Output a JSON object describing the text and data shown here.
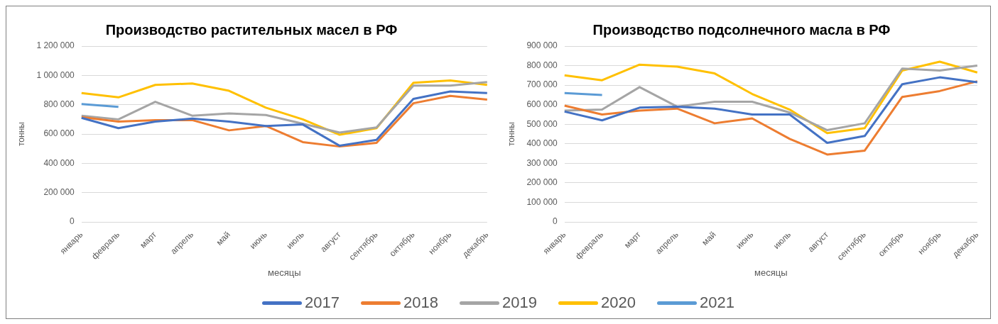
{
  "chart_data": [
    {
      "type": "line",
      "title": "Производство растительных масел в РФ",
      "xlabel": "месяцы",
      "ylabel": "тонны",
      "categories": [
        "январь",
        "февраль",
        "март",
        "апрель",
        "май",
        "июнь",
        "июль",
        "август",
        "сентябрь",
        "октябрь",
        "ноябрь",
        "декабрь"
      ],
      "series": [
        {
          "name": "2017",
          "color": "#4472c4",
          "values": [
            710000,
            640000,
            685000,
            705000,
            685000,
            655000,
            665000,
            520000,
            560000,
            840000,
            890000,
            880000
          ]
        },
        {
          "name": "2018",
          "color": "#ed7d31",
          "values": [
            715000,
            685000,
            695000,
            695000,
            625000,
            655000,
            545000,
            515000,
            540000,
            810000,
            860000,
            835000
          ]
        },
        {
          "name": "2019",
          "color": "#a5a5a5",
          "values": [
            725000,
            700000,
            820000,
            725000,
            740000,
            730000,
            670000,
            610000,
            645000,
            930000,
            930000,
            955000
          ]
        },
        {
          "name": "2020",
          "color": "#ffc000",
          "values": [
            880000,
            850000,
            935000,
            945000,
            895000,
            780000,
            700000,
            595000,
            640000,
            950000,
            965000,
            935000
          ]
        },
        {
          "name": "2021",
          "color": "#5b9bd5",
          "values": [
            805000,
            785000,
            null,
            null,
            null,
            null,
            null,
            null,
            null,
            null,
            null,
            null
          ]
        }
      ],
      "ylim": [
        0,
        1200000
      ],
      "yticks": [
        0,
        {
          "value": 200000,
          "label": "200 000"
        },
        {
          "value": 400000,
          "label": "400 000"
        },
        {
          "value": 600000,
          "label": "600 000"
        },
        {
          "value": 800000,
          "label": "800 000"
        },
        {
          "value": 1000000,
          "label": "1 000 000"
        },
        {
          "value": 1200000,
          "label": "1 200 000"
        }
      ],
      "grid": "y",
      "legend": "bottom",
      "marker": "none"
    },
    {
      "type": "line",
      "title": "Производство подсолнечного масла в РФ",
      "xlabel": "месяцы",
      "ylabel": "тонны",
      "categories": [
        "январь",
        "февраль",
        "март",
        "апрель",
        "май",
        "июнь",
        "июль",
        "август",
        "сентябрь",
        "октябрь",
        "ноябрь",
        "декабрь"
      ],
      "series": [
        {
          "name": "2017",
          "color": "#4472c4",
          "values": [
            565000,
            520000,
            585000,
            590000,
            580000,
            550000,
            550000,
            405000,
            440000,
            705000,
            740000,
            715000
          ]
        },
        {
          "name": "2018",
          "color": "#ed7d31",
          "values": [
            595000,
            550000,
            570000,
            580000,
            505000,
            530000,
            425000,
            345000,
            365000,
            640000,
            670000,
            720000
          ]
        },
        {
          "name": "2019",
          "color": "#a5a5a5",
          "values": [
            570000,
            575000,
            690000,
            590000,
            615000,
            615000,
            560000,
            470000,
            505000,
            785000,
            775000,
            800000
          ]
        },
        {
          "name": "2020",
          "color": "#ffc000",
          "values": [
            750000,
            725000,
            805000,
            795000,
            760000,
            655000,
            575000,
            455000,
            480000,
            775000,
            820000,
            765000
          ]
        },
        {
          "name": "2021",
          "color": "#5b9bd5",
          "values": [
            660000,
            650000,
            null,
            null,
            null,
            null,
            null,
            null,
            null,
            null,
            null,
            null
          ]
        }
      ],
      "ylim": [
        0,
        900000
      ],
      "yticks": [
        0,
        {
          "value": 100000,
          "label": "100 000"
        },
        {
          "value": 200000,
          "label": "200 000"
        },
        {
          "value": 300000,
          "label": "300 000"
        },
        {
          "value": 400000,
          "label": "400 000"
        },
        {
          "value": 500000,
          "label": "500 000"
        },
        {
          "value": 600000,
          "label": "600 000"
        },
        {
          "value": 700000,
          "label": "700 000"
        },
        {
          "value": 800000,
          "label": "800 000"
        },
        {
          "value": 900000,
          "label": "900 000"
        }
      ],
      "grid": "y",
      "legend": "bottom",
      "marker": "none"
    }
  ]
}
